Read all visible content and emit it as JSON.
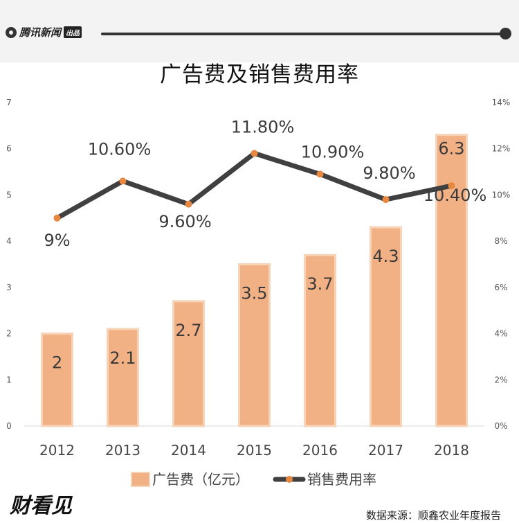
{
  "header": {
    "logo_text": "腾讯新闻",
    "logo_badge": "出品"
  },
  "chart_data": {
    "type": "bar",
    "title": "广告费及销售费用率",
    "categories": [
      "2012",
      "2013",
      "2014",
      "2015",
      "2016",
      "2017",
      "2018"
    ],
    "series": [
      {
        "name": "广告费（亿元）",
        "type": "bar",
        "axis": "left",
        "values": [
          2,
          2.1,
          2.7,
          3.5,
          3.7,
          4.3,
          6.3
        ],
        "labels": [
          "2",
          "2.1",
          "2.7",
          "3.5",
          "3.7",
          "4.3",
          "6.3"
        ]
      },
      {
        "name": "销售费用率",
        "type": "line",
        "axis": "right",
        "values": [
          9,
          10.6,
          9.6,
          11.8,
          10.9,
          9.8,
          10.4
        ],
        "labels": [
          "9%",
          "10.60%",
          "9.60%",
          "11.80%",
          "10.90%",
          "9.80%",
          "10.40%"
        ]
      }
    ],
    "left_axis": {
      "ylim": [
        0,
        7
      ],
      "ticks": [
        "0",
        "1",
        "2",
        "3",
        "4",
        "5",
        "6",
        "7"
      ]
    },
    "right_axis": {
      "ylim": [
        0,
        14
      ],
      "ticks": [
        "0%",
        "2%",
        "4%",
        "6%",
        "8%",
        "10%",
        "12%",
        "14%"
      ]
    },
    "legend_position": "bottom",
    "grid": false,
    "colors": {
      "bar": "#f2b184",
      "bar_edge": "#f7d3b8",
      "line": "#404040",
      "marker": "#e8873f"
    }
  },
  "footer": {
    "brand": "财看见",
    "source": "数据来源：顺鑫农业年度报告"
  }
}
